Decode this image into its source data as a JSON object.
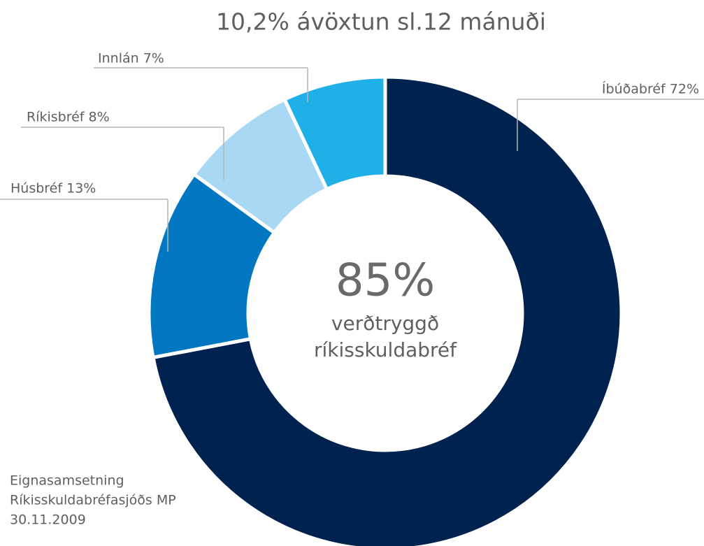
{
  "chart_data": {
    "type": "pie",
    "donut": true,
    "title": "10,2% ávöxtun sl.12 mánuði",
    "values": [
      72,
      13,
      8,
      7
    ],
    "value_labels": [
      "Íbúðabréf 72%",
      "Húsbréf 13%",
      "Ríkisbréf 8%",
      "Innlán 7%"
    ],
    "colors": [
      "#00224f",
      "#0077c0",
      "#a9d8f4",
      "#20b0e8"
    ],
    "center_text": [
      "85%",
      "verðtryggð",
      "ríkisskuldabréf"
    ],
    "footnote": [
      "Eignasamsetning",
      "Ríkisskuldabréfasjóðs MP",
      "30.11.2009"
    ]
  }
}
